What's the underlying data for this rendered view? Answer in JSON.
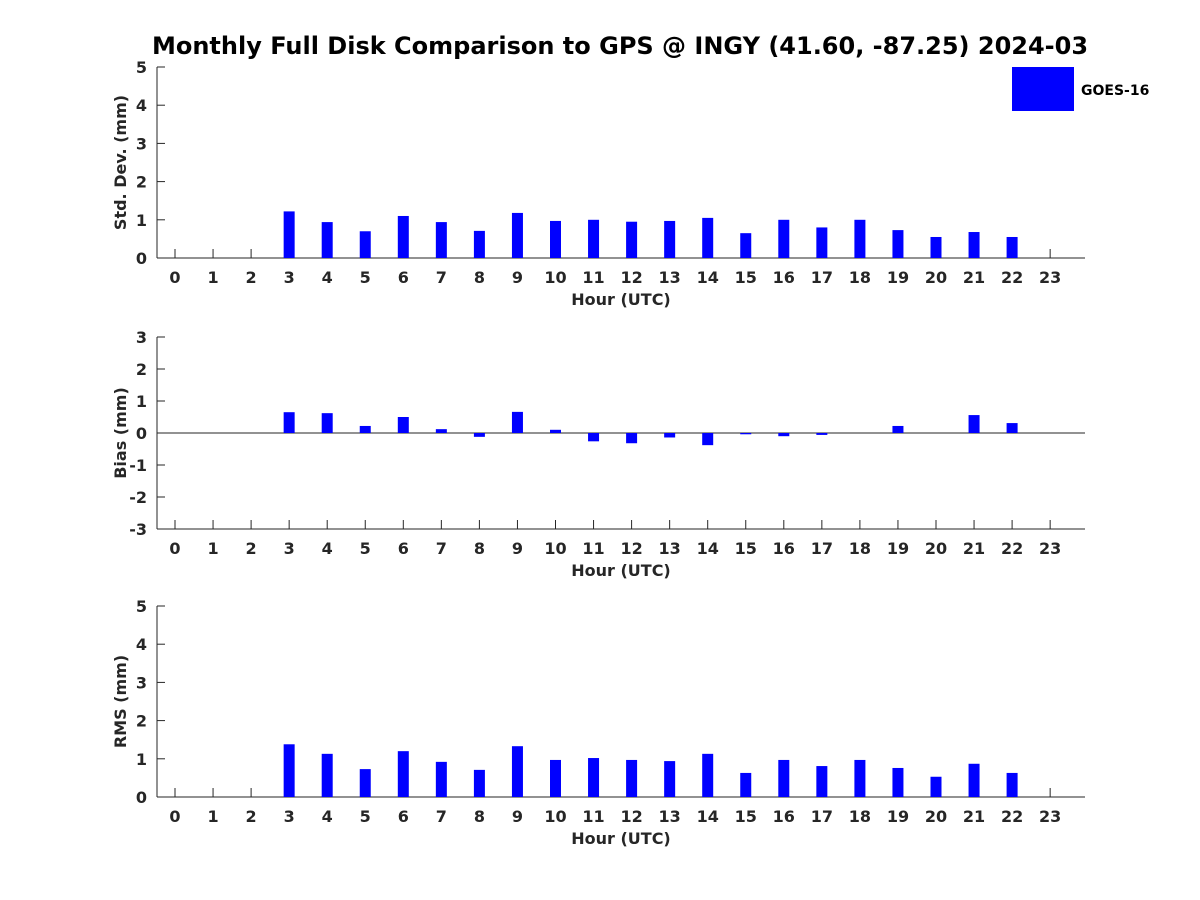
{
  "title": "Monthly Full Disk Comparison to GPS @ INGY (41.60, -87.25) 2024-03",
  "legend": {
    "label": "GOES-16",
    "color": "#0000ff"
  },
  "chart_data": [
    {
      "type": "bar",
      "ylabel": "Std. Dev. (mm)",
      "xlabel": "Hour (UTC)",
      "ylim": [
        0,
        5
      ],
      "yticks": [
        "0",
        "1",
        "2",
        "3",
        "4",
        "5"
      ],
      "categories": [
        "0",
        "1",
        "2",
        "3",
        "4",
        "5",
        "6",
        "7",
        "8",
        "9",
        "10",
        "11",
        "12",
        "13",
        "14",
        "15",
        "16",
        "17",
        "18",
        "19",
        "20",
        "21",
        "22",
        "23"
      ],
      "series": [
        {
          "name": "GOES-16",
          "values": [
            null,
            null,
            null,
            1.22,
            0.94,
            0.7,
            1.1,
            0.94,
            0.71,
            1.18,
            0.97,
            1.0,
            0.95,
            0.97,
            1.05,
            0.65,
            1.0,
            0.8,
            1.0,
            0.73,
            0.55,
            0.68,
            0.55,
            null
          ]
        }
      ]
    },
    {
      "type": "bar",
      "ylabel": "Bias (mm)",
      "xlabel": "Hour (UTC)",
      "ylim": [
        -3,
        3
      ],
      "yticks": [
        "-3",
        "-2",
        "-1",
        "0",
        "1",
        "2",
        "3"
      ],
      "zero_line": true,
      "categories": [
        "0",
        "1",
        "2",
        "3",
        "4",
        "5",
        "6",
        "7",
        "8",
        "9",
        "10",
        "11",
        "12",
        "13",
        "14",
        "15",
        "16",
        "17",
        "18",
        "19",
        "20",
        "21",
        "22",
        "23"
      ],
      "series": [
        {
          "name": "GOES-16",
          "values": [
            null,
            null,
            null,
            0.65,
            0.62,
            0.22,
            0.5,
            0.12,
            -0.12,
            0.66,
            0.1,
            -0.26,
            -0.32,
            -0.14,
            -0.38,
            -0.04,
            -0.1,
            -0.06,
            0.0,
            0.22,
            0.0,
            0.56,
            0.31,
            null
          ]
        }
      ]
    },
    {
      "type": "bar",
      "ylabel": "RMS (mm)",
      "xlabel": "Hour (UTC)",
      "ylim": [
        0,
        5
      ],
      "yticks": [
        "0",
        "1",
        "2",
        "3",
        "4",
        "5"
      ],
      "categories": [
        "0",
        "1",
        "2",
        "3",
        "4",
        "5",
        "6",
        "7",
        "8",
        "9",
        "10",
        "11",
        "12",
        "13",
        "14",
        "15",
        "16",
        "17",
        "18",
        "19",
        "20",
        "21",
        "22",
        "23"
      ],
      "series": [
        {
          "name": "GOES-16",
          "values": [
            null,
            null,
            null,
            1.38,
            1.13,
            0.73,
            1.2,
            0.92,
            0.71,
            1.33,
            0.97,
            1.02,
            0.97,
            0.94,
            1.13,
            0.63,
            0.97,
            0.81,
            0.97,
            0.76,
            0.53,
            0.87,
            0.63,
            null
          ]
        }
      ]
    }
  ]
}
